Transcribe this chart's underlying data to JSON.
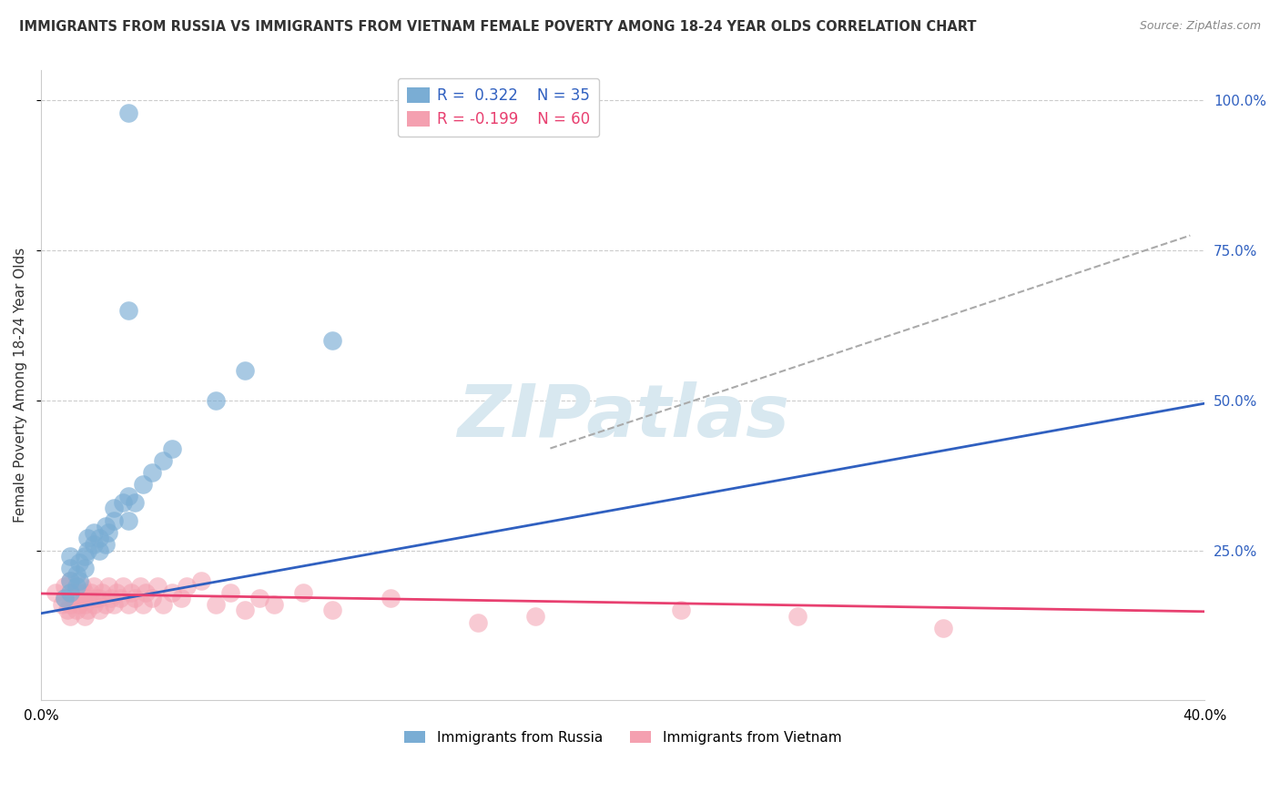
{
  "title": "IMMIGRANTS FROM RUSSIA VS IMMIGRANTS FROM VIETNAM FEMALE POVERTY AMONG 18-24 YEAR OLDS CORRELATION CHART",
  "source": "Source: ZipAtlas.com",
  "ylabel": "Female Poverty Among 18-24 Year Olds",
  "xlim": [
    0.0,
    0.4
  ],
  "ylim": [
    0.0,
    1.05
  ],
  "ytick_vals": [
    0.25,
    0.5,
    0.75,
    1.0
  ],
  "legend_russia_R": "0.322",
  "legend_russia_N": "35",
  "legend_vietnam_R": "-0.199",
  "legend_vietnam_N": "60",
  "russia_color": "#7aadd4",
  "vietnam_color": "#f4a0b0",
  "russia_line_color": "#3060c0",
  "vietnam_line_color": "#e84070",
  "watermark": "ZIPatlas",
  "watermark_color": "#d8e8f0",
  "background_color": "#ffffff",
  "russia_scatter_x": [
    0.008,
    0.01,
    0.01,
    0.01,
    0.01,
    0.012,
    0.012,
    0.013,
    0.013,
    0.015,
    0.015,
    0.016,
    0.016,
    0.018,
    0.018,
    0.02,
    0.02,
    0.022,
    0.022,
    0.023,
    0.025,
    0.025,
    0.028,
    0.03,
    0.03,
    0.032,
    0.035,
    0.038,
    0.042,
    0.045,
    0.06,
    0.07,
    0.1,
    0.03,
    0.03
  ],
  "russia_scatter_y": [
    0.17,
    0.18,
    0.2,
    0.22,
    0.24,
    0.19,
    0.21,
    0.2,
    0.23,
    0.22,
    0.24,
    0.25,
    0.27,
    0.26,
    0.28,
    0.25,
    0.27,
    0.26,
    0.29,
    0.28,
    0.3,
    0.32,
    0.33,
    0.3,
    0.34,
    0.33,
    0.36,
    0.38,
    0.4,
    0.42,
    0.5,
    0.55,
    0.6,
    0.65,
    0.98
  ],
  "vietnam_scatter_x": [
    0.005,
    0.007,
    0.008,
    0.008,
    0.009,
    0.01,
    0.01,
    0.01,
    0.01,
    0.011,
    0.012,
    0.012,
    0.013,
    0.013,
    0.014,
    0.015,
    0.015,
    0.015,
    0.016,
    0.016,
    0.017,
    0.018,
    0.018,
    0.019,
    0.02,
    0.02,
    0.021,
    0.022,
    0.023,
    0.024,
    0.025,
    0.026,
    0.027,
    0.028,
    0.03,
    0.031,
    0.032,
    0.034,
    0.035,
    0.036,
    0.038,
    0.04,
    0.042,
    0.045,
    0.048,
    0.05,
    0.055,
    0.06,
    0.065,
    0.07,
    0.075,
    0.08,
    0.09,
    0.1,
    0.12,
    0.15,
    0.17,
    0.22,
    0.26,
    0.31
  ],
  "vietnam_scatter_y": [
    0.18,
    0.16,
    0.17,
    0.19,
    0.15,
    0.14,
    0.16,
    0.18,
    0.2,
    0.17,
    0.15,
    0.17,
    0.16,
    0.18,
    0.19,
    0.14,
    0.16,
    0.18,
    0.15,
    0.17,
    0.18,
    0.16,
    0.19,
    0.17,
    0.15,
    0.17,
    0.18,
    0.16,
    0.19,
    0.17,
    0.16,
    0.18,
    0.17,
    0.19,
    0.16,
    0.18,
    0.17,
    0.19,
    0.16,
    0.18,
    0.17,
    0.19,
    0.16,
    0.18,
    0.17,
    0.19,
    0.2,
    0.16,
    0.18,
    0.15,
    0.17,
    0.16,
    0.18,
    0.15,
    0.17,
    0.13,
    0.14,
    0.15,
    0.14,
    0.12
  ],
  "russia_line_y0": 0.145,
  "russia_line_y1": 0.495,
  "vietnam_line_y0": 0.178,
  "vietnam_line_y1": 0.148,
  "dash_line_x0": 0.175,
  "dash_line_y0": 0.42,
  "dash_line_x1": 0.395,
  "dash_line_y1": 0.775
}
